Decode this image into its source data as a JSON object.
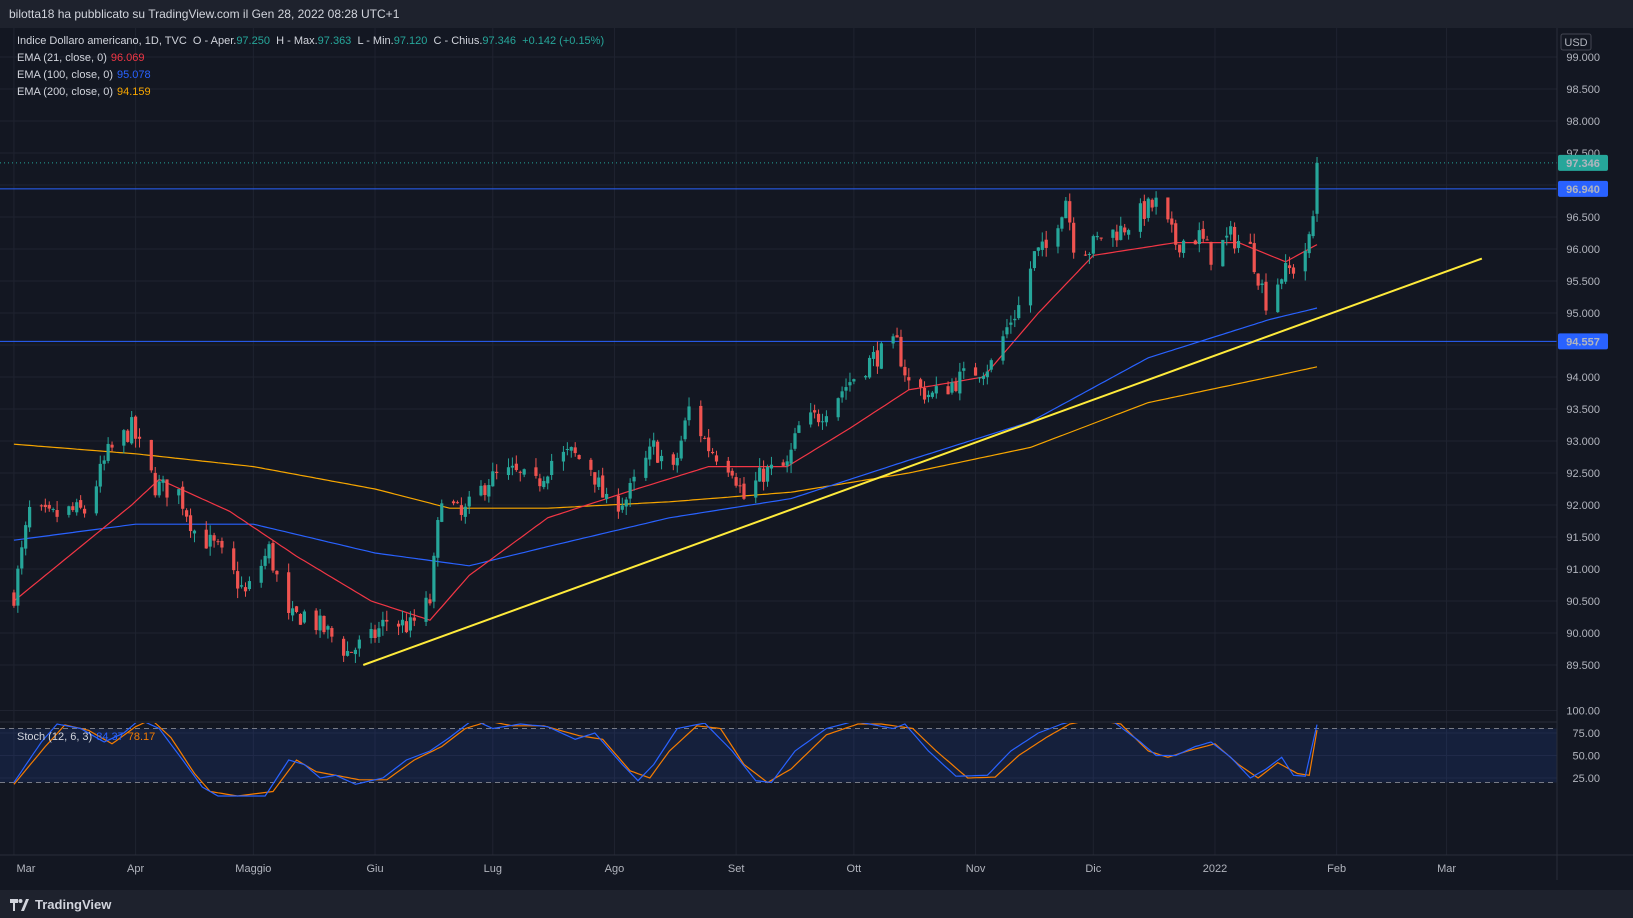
{
  "header": {
    "text": "bilotta18 ha pubblicato su TradingView.com il Gen 28, 2022 08:28 UTC+1"
  },
  "legend": {
    "main": {
      "name": "Indice Dollaro americano, 1D, TVC",
      "o_label": "O - Aper.",
      "o": "97.250",
      "h_label": "H - Max.",
      "h": "97.363",
      "l_label": "L - Min.",
      "l": "97.120",
      "c_label": "C - Chius.",
      "c": "97.346",
      "change": "+0.142 (+0.15%)"
    },
    "ema21": {
      "label": "EMA (21, close, 0)",
      "value": "96.069",
      "color": "#f23645"
    },
    "ema100": {
      "label": "EMA (100, close, 0)",
      "value": "95.078",
      "color": "#2962ff"
    },
    "ema200": {
      "label": "EMA (200, close, 0)",
      "value": "94.159",
      "color": "#f7a600"
    },
    "stoch": {
      "label": "Stoch (12, 6, 3)",
      "k": "84.37",
      "d": "78.17",
      "k_color": "#2962ff",
      "d_color": "#f57c00"
    }
  },
  "currency": "USD",
  "footer": {
    "brand": "TradingView"
  },
  "price_labels": {
    "last": "97.346",
    "res": "96.940",
    "sup": "94.557",
    "last_color": "#26a69a",
    "line_color": "#2962ff"
  },
  "chart_data": {
    "type": "candlestick",
    "title": "Indice Dollaro americano, 1D, TVC",
    "ylim": [
      89.3,
      99.5
    ],
    "y_ticks": [
      "99.000",
      "98.500",
      "98.000",
      "97.500",
      "97.000",
      "96.500",
      "96.000",
      "95.500",
      "95.000",
      "94.500",
      "94.000",
      "93.500",
      "93.000",
      "92.500",
      "92.000",
      "91.500",
      "91.000",
      "90.500",
      "90.000",
      "89.500"
    ],
    "x_ticks": [
      "Mar",
      "Apr",
      "Maggio",
      "Giu",
      "Lug",
      "Ago",
      "Set",
      "Ott",
      "Nov",
      "Dic",
      "2022",
      "Feb",
      "Mar"
    ],
    "date_range": [
      "2021-03-01",
      "2022-01-27"
    ],
    "close_anchors": [
      [
        "2021-03-01",
        90.6
      ],
      [
        "2021-03-05",
        91.9
      ],
      [
        "2021-03-10",
        91.8
      ],
      [
        "2021-03-15",
        91.9
      ],
      [
        "2021-03-19",
        91.9
      ],
      [
        "2021-03-25",
        92.8
      ],
      [
        "2021-03-31",
        93.2
      ],
      [
        "2021-04-06",
        92.3
      ],
      [
        "2021-04-12",
        92.2
      ],
      [
        "2021-04-16",
        91.6
      ],
      [
        "2021-04-22",
        91.3
      ],
      [
        "2021-04-29",
        90.6
      ],
      [
        "2021-05-05",
        91.3
      ],
      [
        "2021-05-10",
        90.2
      ],
      [
        "2021-05-14",
        90.3
      ],
      [
        "2021-05-20",
        90.0
      ],
      [
        "2021-05-25",
        89.7
      ],
      [
        "2021-05-31",
        89.9
      ],
      [
        "2021-06-04",
        90.2
      ],
      [
        "2021-06-10",
        90.1
      ],
      [
        "2021-06-15",
        90.5
      ],
      [
        "2021-06-18",
        92.2
      ],
      [
        "2021-06-23",
        91.8
      ],
      [
        "2021-06-30",
        92.4
      ],
      [
        "2021-07-06",
        92.5
      ],
      [
        "2021-07-12",
        92.3
      ],
      [
        "2021-07-16",
        92.7
      ],
      [
        "2021-07-21",
        92.8
      ],
      [
        "2021-07-26",
        92.6
      ],
      [
        "2021-07-30",
        92.0
      ],
      [
        "2021-08-04",
        92.1
      ],
      [
        "2021-08-11",
        92.9
      ],
      [
        "2021-08-16",
        92.5
      ],
      [
        "2021-08-20",
        93.5
      ],
      [
        "2021-08-25",
        92.9
      ],
      [
        "2021-08-31",
        92.6
      ],
      [
        "2021-09-03",
        92.1
      ],
      [
        "2021-09-08",
        92.5
      ],
      [
        "2021-09-14",
        92.6
      ],
      [
        "2021-09-17",
        93.2
      ],
      [
        "2021-09-22",
        93.4
      ],
      [
        "2021-09-28",
        93.8
      ],
      [
        "2021-10-01",
        94.0
      ],
      [
        "2021-10-06",
        94.3
      ],
      [
        "2021-10-12",
        94.5
      ],
      [
        "2021-10-15",
        93.9
      ],
      [
        "2021-10-21",
        93.7
      ],
      [
        "2021-10-26",
        93.9
      ],
      [
        "2021-11-01",
        94.1
      ],
      [
        "2021-11-05",
        94.2
      ],
      [
        "2021-11-10",
        94.9
      ],
      [
        "2021-11-12",
        95.1
      ],
      [
        "2021-11-16",
        95.9
      ],
      [
        "2021-11-19",
        96.0
      ],
      [
        "2021-11-24",
        96.8
      ],
      [
        "2021-11-26",
        96.1
      ],
      [
        "2021-11-30",
        96.0
      ],
      [
        "2021-12-03",
        96.2
      ],
      [
        "2021-12-08",
        96.3
      ],
      [
        "2021-12-14",
        96.6
      ],
      [
        "2021-12-17",
        96.7
      ],
      [
        "2021-12-22",
        96.1
      ],
      [
        "2021-12-28",
        96.2
      ],
      [
        "2021-12-31",
        95.9
      ],
      [
        "2022-01-05",
        96.2
      ],
      [
        "2022-01-10",
        96.0
      ],
      [
        "2022-01-14",
        95.2
      ],
      [
        "2022-01-18",
        95.6
      ],
      [
        "2022-01-21",
        95.7
      ],
      [
        "2022-01-25",
        96.1
      ],
      [
        "2022-01-26",
        96.5
      ],
      [
        "2022-01-27",
        97.346
      ]
    ],
    "ema21_anchors": [
      [
        "2021-03-01",
        90.5
      ],
      [
        "2021-03-15",
        91.2
      ],
      [
        "2021-03-31",
        92.0
      ],
      [
        "2021-04-07",
        92.4
      ],
      [
        "2021-04-25",
        91.9
      ],
      [
        "2021-05-12",
        91.2
      ],
      [
        "2021-05-31",
        90.5
      ],
      [
        "2021-06-15",
        90.2
      ],
      [
        "2021-06-25",
        90.9
      ],
      [
        "2021-07-15",
        91.8
      ],
      [
        "2021-08-04",
        92.2
      ],
      [
        "2021-08-25",
        92.6
      ],
      [
        "2021-09-14",
        92.6
      ],
      [
        "2021-09-30",
        93.2
      ],
      [
        "2021-10-15",
        93.8
      ],
      [
        "2021-11-03",
        94.0
      ],
      [
        "2021-11-17",
        95.0
      ],
      [
        "2021-12-01",
        95.9
      ],
      [
        "2021-12-22",
        96.1
      ],
      [
        "2022-01-07",
        96.1
      ],
      [
        "2022-01-19",
        95.8
      ],
      [
        "2022-01-27",
        96.069
      ]
    ],
    "ema100_anchors": [
      [
        "2021-03-01",
        91.45
      ],
      [
        "2021-04-01",
        91.7
      ],
      [
        "2021-05-01",
        91.7
      ],
      [
        "2021-06-01",
        91.25
      ],
      [
        "2021-06-25",
        91.05
      ],
      [
        "2021-07-15",
        91.35
      ],
      [
        "2021-08-15",
        91.8
      ],
      [
        "2021-09-15",
        92.1
      ],
      [
        "2021-10-15",
        92.7
      ],
      [
        "2021-11-15",
        93.3
      ],
      [
        "2021-12-15",
        94.3
      ],
      [
        "2022-01-15",
        94.9
      ],
      [
        "2022-01-27",
        95.078
      ]
    ],
    "ema200_anchors": [
      [
        "2021-03-01",
        92.95
      ],
      [
        "2021-04-01",
        92.8
      ],
      [
        "2021-05-01",
        92.6
      ],
      [
        "2021-06-01",
        92.25
      ],
      [
        "2021-06-20",
        91.95
      ],
      [
        "2021-07-15",
        91.95
      ],
      [
        "2021-08-15",
        92.05
      ],
      [
        "2021-09-15",
        92.2
      ],
      [
        "2021-10-15",
        92.5
      ],
      [
        "2021-11-15",
        92.9
      ],
      [
        "2021-12-15",
        93.6
      ],
      [
        "2022-01-15",
        94.0
      ],
      [
        "2022-01-27",
        94.159
      ]
    ],
    "horizontal_lines": [
      96.94,
      94.557
    ],
    "last_price": 97.346,
    "trendline": {
      "from": [
        "2021-05-29",
        89.5
      ],
      "to": [
        "2022-03-10",
        95.85
      ]
    },
    "stoch": {
      "ylim": [
        12,
        102
      ],
      "y_ticks": [
        "100.00",
        "75.00",
        "50.00",
        "25.00"
      ],
      "bands": [
        20,
        80
      ],
      "k_anchors": [
        [
          "2021-03-01",
          20
        ],
        [
          "2021-03-08",
          65
        ],
        [
          "2021-03-12",
          85
        ],
        [
          "2021-03-18",
          80
        ],
        [
          "2021-03-24",
          65
        ],
        [
          "2021-03-29",
          75
        ],
        [
          "2021-04-02",
          90
        ],
        [
          "2021-04-07",
          80
        ],
        [
          "2021-04-13",
          45
        ],
        [
          "2021-04-18",
          15
        ],
        [
          "2021-04-22",
          5
        ],
        [
          "2021-05-04",
          5
        ],
        [
          "2021-05-10",
          45
        ],
        [
          "2021-05-14",
          40
        ],
        [
          "2021-05-18",
          25
        ],
        [
          "2021-05-22",
          28
        ],
        [
          "2021-05-27",
          18
        ],
        [
          "2021-06-03",
          25
        ],
        [
          "2021-06-09",
          45
        ],
        [
          "2021-06-15",
          55
        ],
        [
          "2021-06-20",
          70
        ],
        [
          "2021-06-26",
          90
        ],
        [
          "2021-07-01",
          80
        ],
        [
          "2021-07-08",
          85
        ],
        [
          "2021-07-15",
          82
        ],
        [
          "2021-07-22",
          68
        ],
        [
          "2021-07-27",
          75
        ],
        [
          "2021-08-03",
          40
        ],
        [
          "2021-08-07",
          22
        ],
        [
          "2021-08-11",
          40
        ],
        [
          "2021-08-17",
          80
        ],
        [
          "2021-08-24",
          86
        ],
        [
          "2021-08-31",
          55
        ],
        [
          "2021-09-06",
          22
        ],
        [
          "2021-09-10",
          20
        ],
        [
          "2021-09-16",
          55
        ],
        [
          "2021-09-24",
          80
        ],
        [
          "2021-10-01",
          88
        ],
        [
          "2021-10-05",
          85
        ],
        [
          "2021-10-11",
          80
        ],
        [
          "2021-10-14",
          85
        ],
        [
          "2021-10-20",
          55
        ],
        [
          "2021-10-27",
          27
        ],
        [
          "2021-11-04",
          28
        ],
        [
          "2021-11-10",
          55
        ],
        [
          "2021-11-17",
          75
        ],
        [
          "2021-11-23",
          85
        ],
        [
          "2021-11-29",
          92
        ],
        [
          "2021-12-06",
          88
        ],
        [
          "2021-12-13",
          65
        ],
        [
          "2021-12-17",
          50
        ],
        [
          "2021-12-22",
          50
        ],
        [
          "2021-12-27",
          60
        ],
        [
          "2021-12-31",
          65
        ],
        [
          "2022-01-05",
          48
        ],
        [
          "2022-01-10",
          25
        ],
        [
          "2022-01-14",
          35
        ],
        [
          "2022-01-18",
          48
        ],
        [
          "2022-01-21",
          28
        ],
        [
          "2022-01-24",
          27
        ],
        [
          "2022-01-27",
          84.37
        ]
      ],
      "d_anchors": [
        [
          "2021-03-01",
          18
        ],
        [
          "2021-03-09",
          60
        ],
        [
          "2021-03-14",
          84
        ],
        [
          "2021-03-20",
          78
        ],
        [
          "2021-03-26",
          63
        ],
        [
          "2021-04-01",
          82
        ],
        [
          "2021-04-05",
          90
        ],
        [
          "2021-04-10",
          70
        ],
        [
          "2021-04-16",
          30
        ],
        [
          "2021-04-20",
          10
        ],
        [
          "2021-04-27",
          5
        ],
        [
          "2021-05-06",
          10
        ],
        [
          "2021-05-12",
          45
        ],
        [
          "2021-05-17",
          32
        ],
        [
          "2021-05-22",
          28
        ],
        [
          "2021-05-28",
          23
        ],
        [
          "2021-06-04",
          23
        ],
        [
          "2021-06-11",
          45
        ],
        [
          "2021-06-18",
          60
        ],
        [
          "2021-06-24",
          80
        ],
        [
          "2021-06-30",
          88
        ],
        [
          "2021-07-06",
          83
        ],
        [
          "2021-07-14",
          83
        ],
        [
          "2021-07-23",
          72
        ],
        [
          "2021-07-29",
          68
        ],
        [
          "2021-08-05",
          33
        ],
        [
          "2021-08-10",
          25
        ],
        [
          "2021-08-15",
          55
        ],
        [
          "2021-08-22",
          83
        ],
        [
          "2021-08-28",
          80
        ],
        [
          "2021-09-03",
          40
        ],
        [
          "2021-09-09",
          20
        ],
        [
          "2021-09-15",
          35
        ],
        [
          "2021-09-24",
          73
        ],
        [
          "2021-10-02",
          85
        ],
        [
          "2021-10-08",
          85
        ],
        [
          "2021-10-16",
          80
        ],
        [
          "2021-10-22",
          55
        ],
        [
          "2021-10-30",
          25
        ],
        [
          "2021-11-06",
          26
        ],
        [
          "2021-11-12",
          50
        ],
        [
          "2021-11-19",
          70
        ],
        [
          "2021-11-25",
          85
        ],
        [
          "2021-12-01",
          90
        ],
        [
          "2021-12-08",
          85
        ],
        [
          "2021-12-15",
          55
        ],
        [
          "2021-12-20",
          48
        ],
        [
          "2021-12-25",
          55
        ],
        [
          "2022-01-01",
          63
        ],
        [
          "2022-01-07",
          40
        ],
        [
          "2022-01-12",
          25
        ],
        [
          "2022-01-17",
          42
        ],
        [
          "2022-01-22",
          30
        ],
        [
          "2022-01-25",
          28
        ],
        [
          "2022-01-27",
          78.17
        ]
      ]
    }
  }
}
